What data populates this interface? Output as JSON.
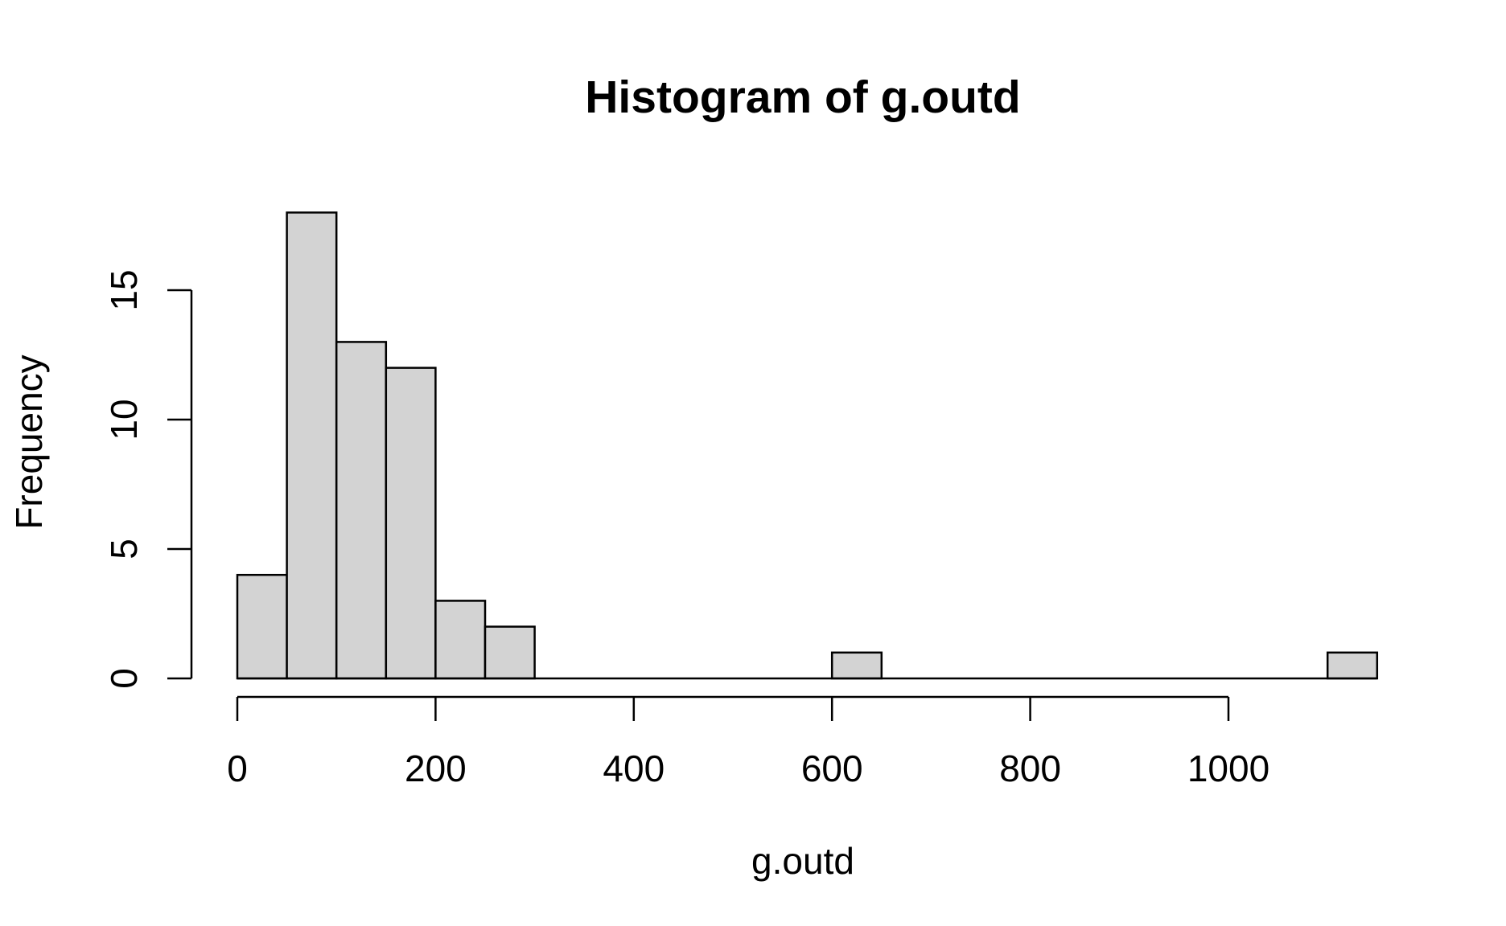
{
  "chart_data": {
    "type": "bar",
    "title": "Histogram of g.outd",
    "xlabel": "g.outd",
    "ylabel": "Frequency",
    "bins": [
      {
        "from": 0,
        "to": 50,
        "count": 4
      },
      {
        "from": 50,
        "to": 100,
        "count": 18
      },
      {
        "from": 100,
        "to": 150,
        "count": 13
      },
      {
        "from": 150,
        "to": 200,
        "count": 12
      },
      {
        "from": 200,
        "to": 250,
        "count": 3
      },
      {
        "from": 250,
        "to": 300,
        "count": 2
      },
      {
        "from": 600,
        "to": 650,
        "count": 1
      },
      {
        "from": 1100,
        "to": 1150,
        "count": 1
      }
    ],
    "x_ticks": [
      0,
      200,
      400,
      600,
      800,
      1000
    ],
    "y_ticks": [
      0,
      5,
      10,
      15
    ],
    "xlim": [
      0,
      1150
    ],
    "ylim": [
      0,
      18
    ],
    "grid": false,
    "legend": "none",
    "colors": {
      "bar_fill": "#d3d3d3",
      "bar_stroke": "#000000",
      "axis": "#000000",
      "background": "#ffffff"
    }
  }
}
